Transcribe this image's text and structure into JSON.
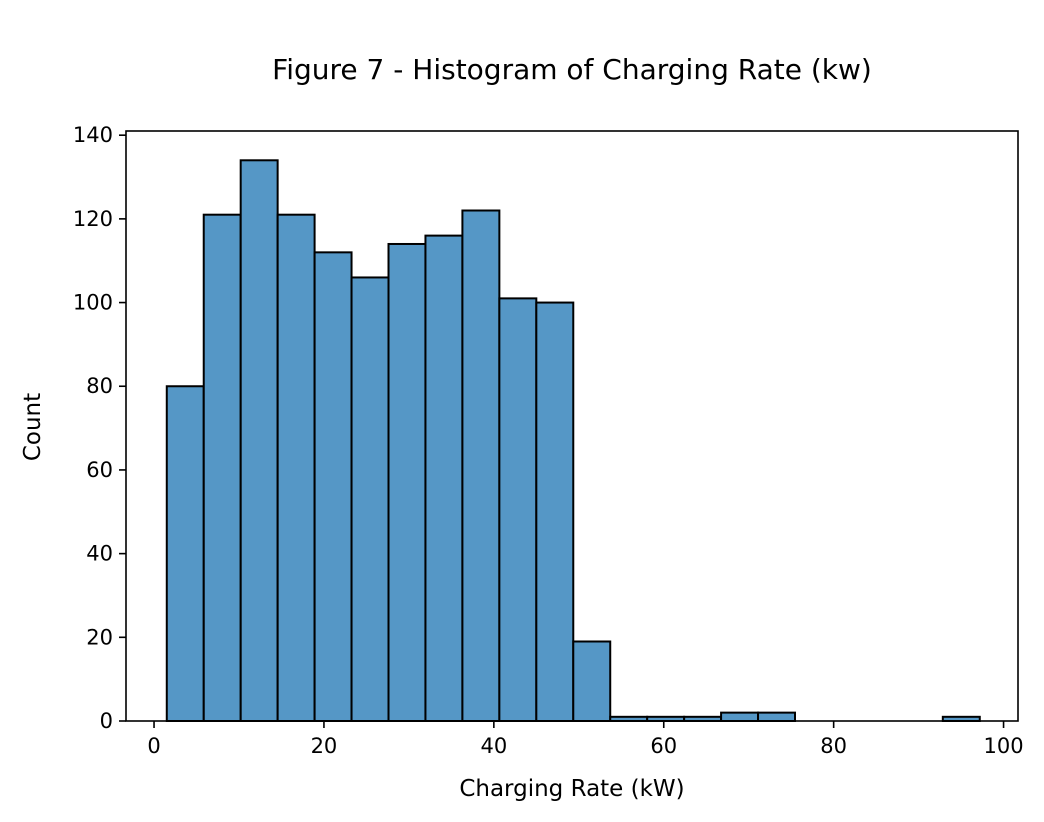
{
  "chart_data": {
    "type": "bar",
    "title": "Figure 7 - Histogram of Charging Rate (kw)",
    "xlabel": "Charging Rate (kW)",
    "ylabel": "Count",
    "xlim": [
      -3.3,
      101.7
    ],
    "ylim": [
      0,
      141
    ],
    "xticks": [
      0,
      20,
      40,
      60,
      80,
      100
    ],
    "yticks": [
      0,
      20,
      40,
      60,
      80,
      100,
      120,
      140
    ],
    "bar_color": "#5597c6",
    "grid": false,
    "bins": [
      {
        "x0": 1.5,
        "x1": 5.85,
        "count": 80
      },
      {
        "x0": 5.85,
        "x1": 10.2,
        "count": 121
      },
      {
        "x0": 10.2,
        "x1": 14.55,
        "count": 134
      },
      {
        "x0": 14.55,
        "x1": 18.9,
        "count": 121
      },
      {
        "x0": 18.9,
        "x1": 23.25,
        "count": 112
      },
      {
        "x0": 23.25,
        "x1": 27.6,
        "count": 106
      },
      {
        "x0": 27.6,
        "x1": 31.95,
        "count": 114
      },
      {
        "x0": 31.95,
        "x1": 36.3,
        "count": 116
      },
      {
        "x0": 36.3,
        "x1": 40.65,
        "count": 122
      },
      {
        "x0": 40.65,
        "x1": 45.0,
        "count": 101
      },
      {
        "x0": 45.0,
        "x1": 49.35,
        "count": 100
      },
      {
        "x0": 49.35,
        "x1": 53.7,
        "count": 19
      },
      {
        "x0": 53.7,
        "x1": 58.05,
        "count": 1
      },
      {
        "x0": 58.05,
        "x1": 62.4,
        "count": 1
      },
      {
        "x0": 62.4,
        "x1": 66.75,
        "count": 1
      },
      {
        "x0": 66.75,
        "x1": 71.1,
        "count": 2
      },
      {
        "x0": 71.1,
        "x1": 75.45,
        "count": 2
      },
      {
        "x0": 75.45,
        "x1": 79.8,
        "count": 0
      },
      {
        "x0": 79.8,
        "x1": 84.15,
        "count": 0
      },
      {
        "x0": 84.15,
        "x1": 88.5,
        "count": 0
      },
      {
        "x0": 88.5,
        "x1": 92.85,
        "count": 0
      },
      {
        "x0": 92.85,
        "x1": 97.2,
        "count": 1
      }
    ]
  }
}
